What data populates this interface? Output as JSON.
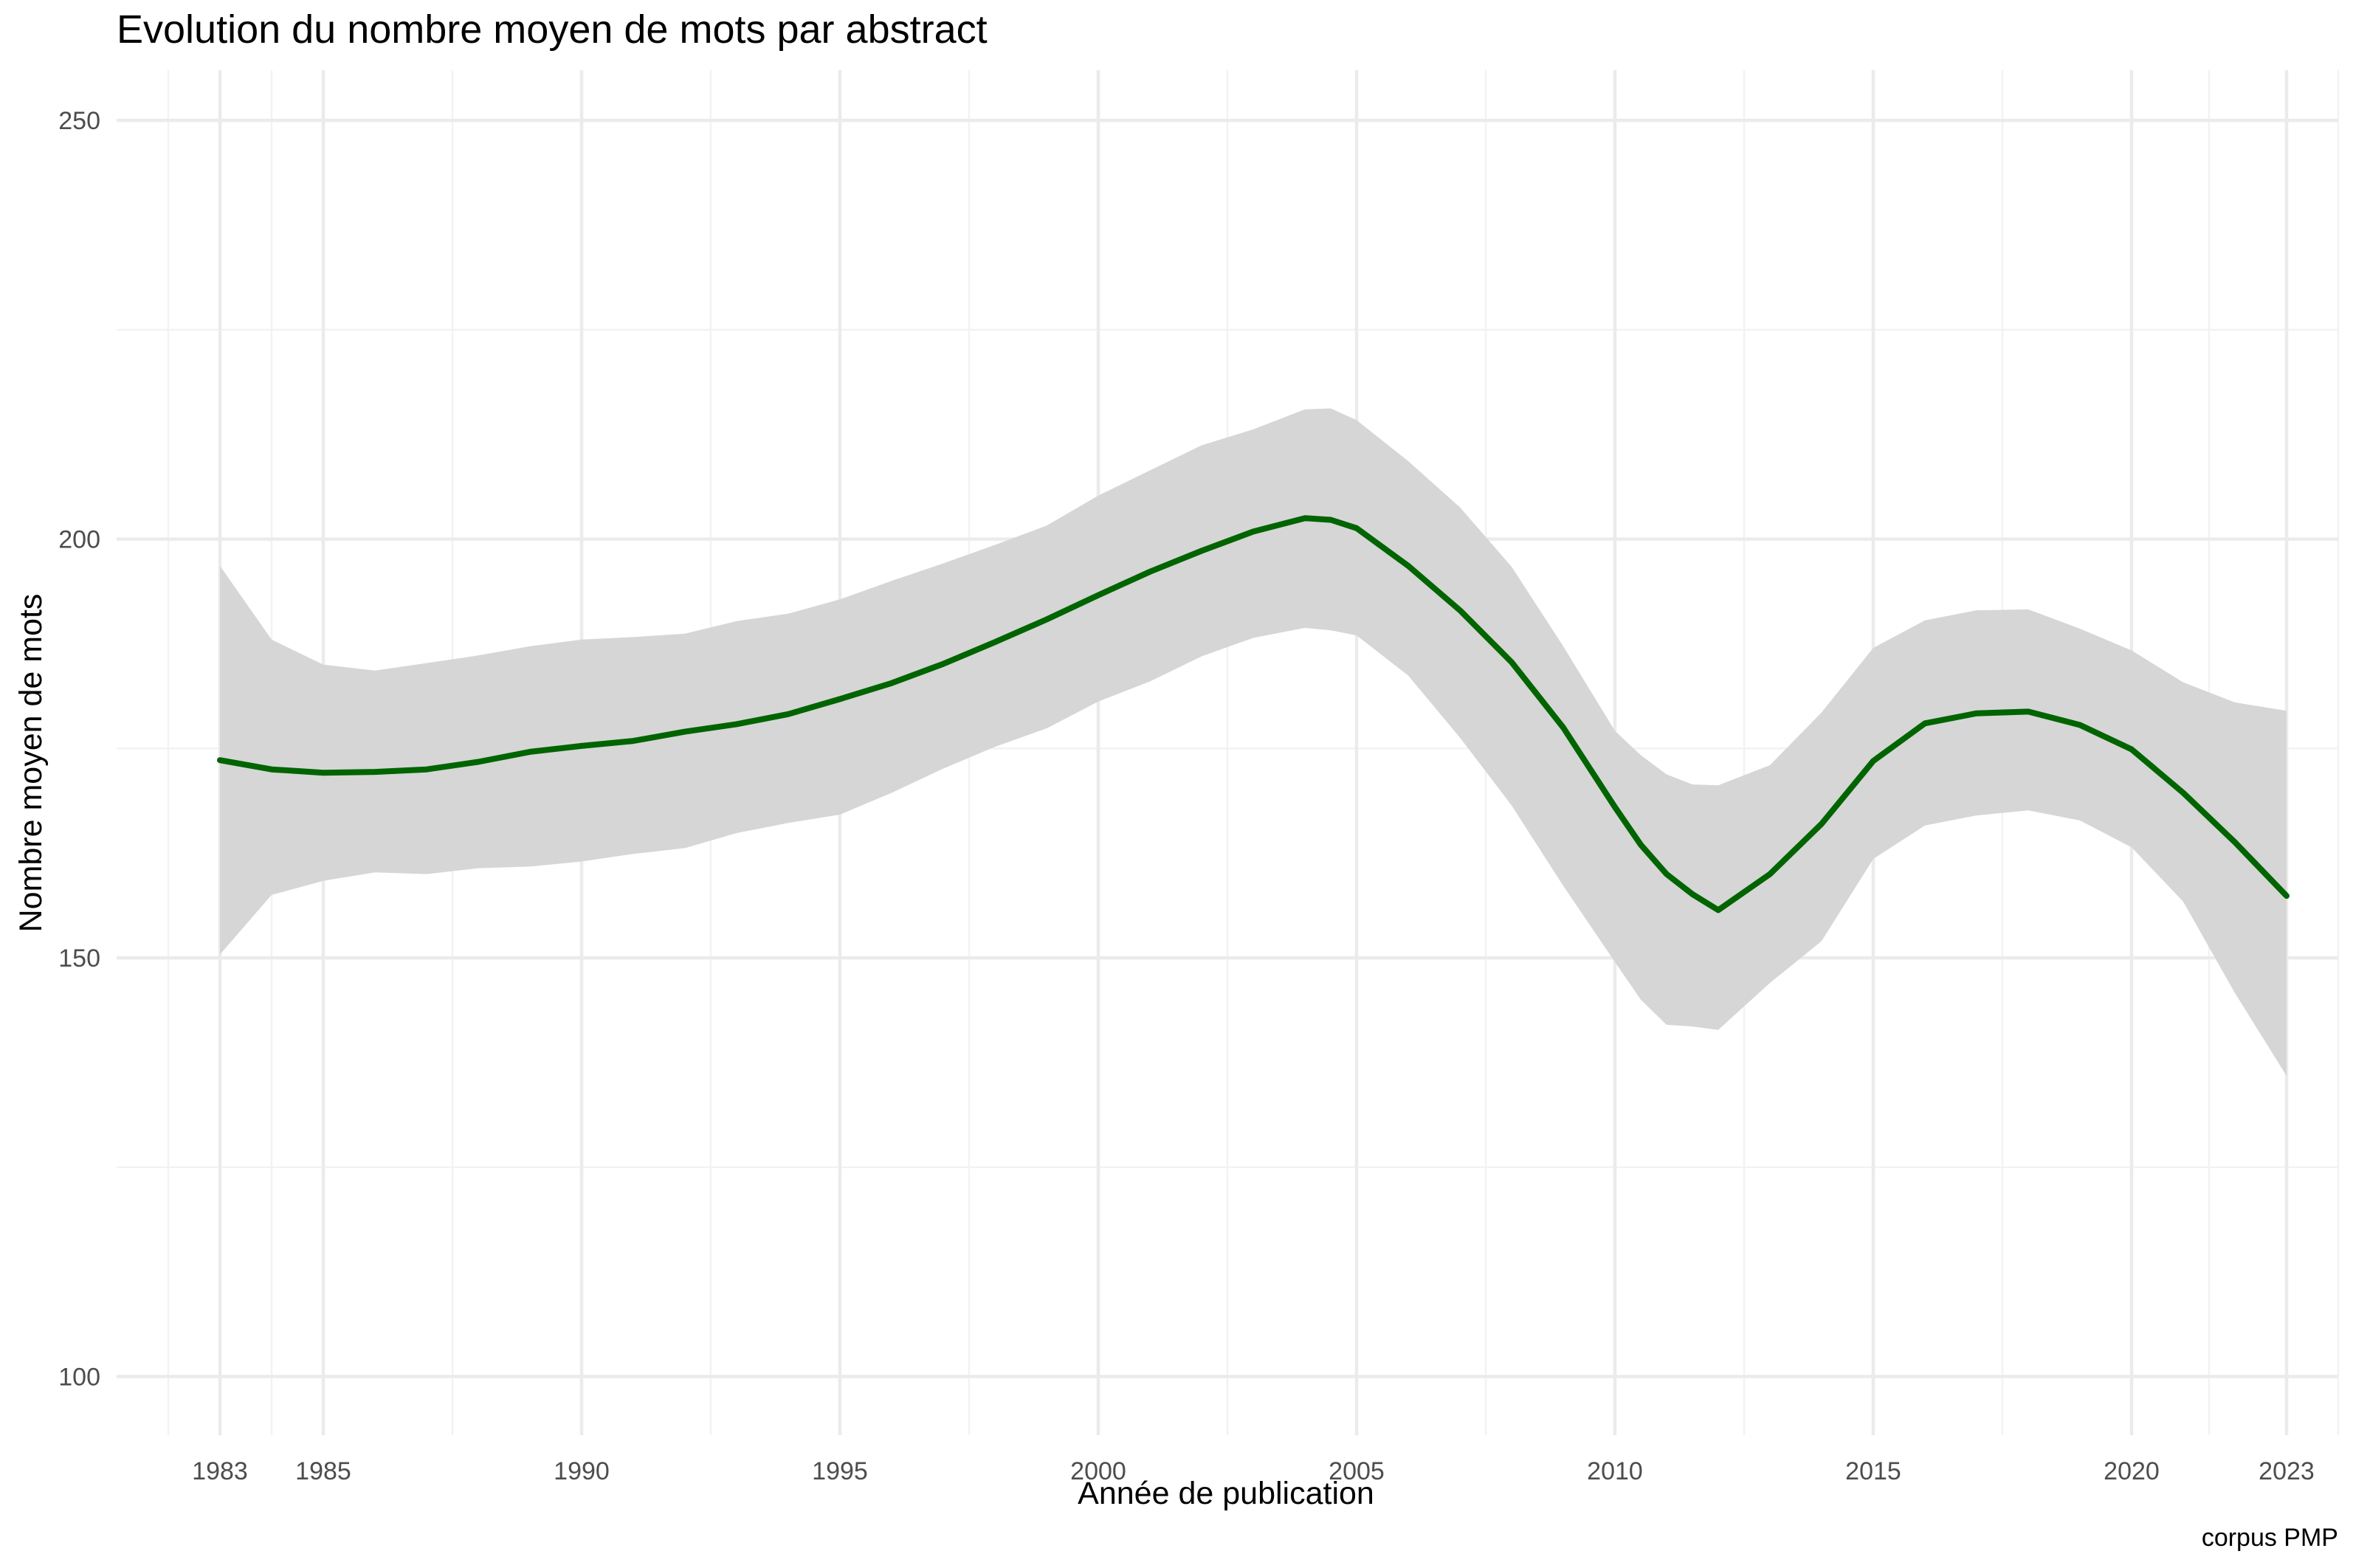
{
  "chart_data": {
    "type": "line",
    "title": "Evolution du nombre moyen de mots par abstract",
    "xlabel": "Année de publication",
    "ylabel": "Nombre moyen de mots",
    "caption": "corpus PMP",
    "xlim": [
      1981,
      2024
    ],
    "ylim": [
      93,
      256
    ],
    "x_ticks": [
      1983,
      1985,
      1990,
      1995,
      2000,
      2005,
      2010,
      2015,
      2020,
      2023
    ],
    "x_minor_ticks": [
      1982,
      1984,
      1987.5,
      1992.5,
      1997.5,
      2002.5,
      2007.5,
      2012.5,
      2017.5,
      2021.5,
      2024
    ],
    "y_ticks": [
      100,
      150,
      200,
      250
    ],
    "y_minor_ticks": [
      125,
      175,
      225
    ],
    "grid": true,
    "legend": "none",
    "colors": {
      "line": "#006400",
      "ribbon": "#d6d6d6"
    },
    "series": [
      {
        "x": [
          1983,
          1984,
          1985,
          1986,
          1987,
          1988,
          1989,
          1990,
          1991,
          1992,
          1993,
          1994,
          1995,
          1996,
          1997,
          1998,
          1999,
          2000,
          2001,
          2002,
          2003,
          2004,
          2004.5,
          2005,
          2006,
          2007,
          2008,
          2009,
          2010,
          2010.5,
          2011,
          2011.5,
          2012,
          2013,
          2014,
          2015,
          2016,
          2017,
          2018,
          2019,
          2020,
          2021,
          2022,
          2023
        ],
        "y": [
          173.6,
          172.5,
          172.1,
          172.2,
          172.5,
          173.4,
          174.6,
          175.3,
          175.9,
          177.0,
          177.9,
          179.1,
          180.9,
          182.8,
          185.1,
          187.7,
          190.4,
          193.3,
          196.1,
          198.6,
          200.9,
          202.5,
          202.3,
          201.3,
          196.8,
          191.5,
          185.3,
          177.5,
          168.0,
          163.5,
          160.0,
          157.6,
          155.7,
          160.0,
          166.0,
          173.5,
          178.0,
          179.2,
          179.4,
          177.8,
          174.9,
          169.7,
          163.8,
          157.4
        ],
        "ymin": [
          150.4,
          157.5,
          159.2,
          160.2,
          160.0,
          160.7,
          160.9,
          161.5,
          162.4,
          163.1,
          164.9,
          166.1,
          167.1,
          169.7,
          172.6,
          175.2,
          177.4,
          180.6,
          183.0,
          186.0,
          188.2,
          189.4,
          189.1,
          188.5,
          183.7,
          176.3,
          168.2,
          158.6,
          149.5,
          145.0,
          142.0,
          141.8,
          141.4,
          147.0,
          152.0,
          161.8,
          165.8,
          167.0,
          167.6,
          166.4,
          163.2,
          156.7,
          145.8,
          135.9
        ],
        "ymax": [
          196.8,
          188.0,
          185.0,
          184.3,
          185.2,
          186.1,
          187.2,
          188.0,
          188.3,
          188.7,
          190.2,
          191.1,
          192.8,
          195.0,
          197.1,
          199.3,
          201.6,
          205.2,
          208.2,
          211.2,
          213.1,
          215.5,
          215.6,
          214.2,
          209.3,
          203.8,
          196.7,
          187.2,
          177.1,
          174.2,
          171.9,
          170.7,
          170.6,
          173.0,
          179.3,
          187.0,
          190.3,
          191.5,
          191.6,
          189.3,
          186.7,
          182.9,
          180.5,
          179.5
        ]
      }
    ]
  }
}
